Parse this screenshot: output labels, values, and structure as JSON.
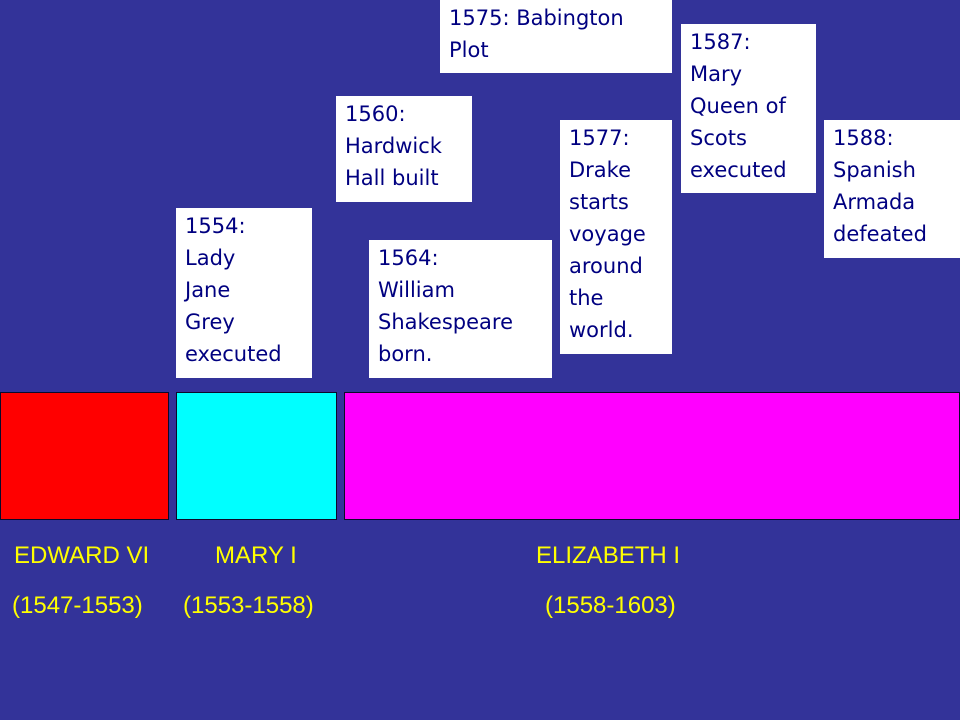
{
  "events": [
    {
      "text": "1575: Babington\nPlot"
    },
    {
      "text": "1587:\nMary\nQueen of\nScots\nexecuted"
    },
    {
      "text": "1560:\nHardwick\nHall built"
    },
    {
      "text": "1577:\nDrake\nstarts\nvoyage\naround\nthe\nworld."
    },
    {
      "text": "1588:\nSpanish\nArmada\ndefeated"
    },
    {
      "text": "1554:\nLady\nJane\nGrey\nexecuted"
    },
    {
      "text": "1564:\nWilliam\nShakespeare\nborn."
    }
  ],
  "reigns": [
    {
      "name": "EDWARD VI",
      "years": "(1547-1553)",
      "color": "#ff0000"
    },
    {
      "name": "MARY I",
      "years": "(1553-1558)",
      "color": "#00ffff"
    },
    {
      "name": "ELIZABETH I",
      "years": "(1558-1603)",
      "color": "#ff00ff"
    }
  ],
  "colors": {
    "background": "#333399",
    "label_text": "#ffff00",
    "event_text": "#000080",
    "event_box": "#ffffff"
  }
}
